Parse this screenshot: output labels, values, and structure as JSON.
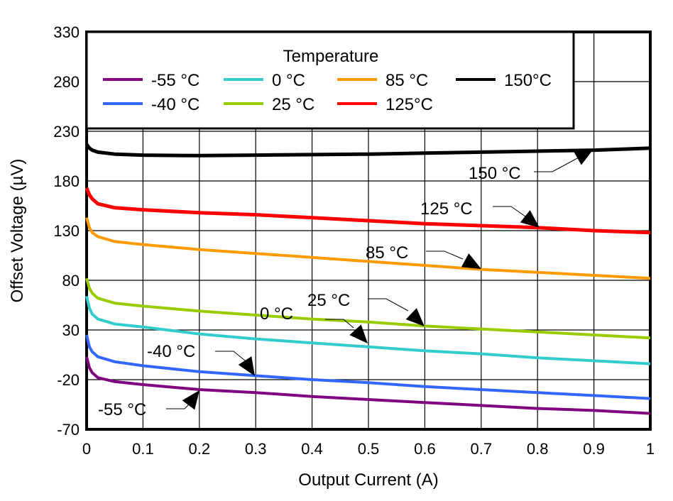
{
  "chart_data": {
    "type": "line",
    "title": "",
    "xlabel": "Output Current (A)",
    "ylabel": "Offset Voltage (µV)",
    "xlim": [
      0,
      1
    ],
    "ylim": [
      -70,
      330
    ],
    "xticks": [
      "0",
      "0.1",
      "0.2",
      "0.3",
      "0.4",
      "0.5",
      "0.6",
      "0.7",
      "0.8",
      "0.9",
      "1"
    ],
    "yticks": [
      "-70",
      "-20",
      "30",
      "80",
      "130",
      "180",
      "230",
      "280",
      "330"
    ],
    "grid": true,
    "legend": {
      "title": "Temperature",
      "placement": "top-left"
    },
    "x": [
      0,
      0.005,
      0.01,
      0.02,
      0.05,
      0.1,
      0.2,
      0.3,
      0.4,
      0.5,
      0.6,
      0.7,
      0.8,
      0.9,
      1.0
    ],
    "series": [
      {
        "name": "-55 °C",
        "color": "#800080",
        "values": [
          3,
          -8,
          -13,
          -18,
          -22,
          -25,
          -30,
          -33,
          -37,
          -40,
          -43,
          -46,
          -49,
          -51,
          -54
        ]
      },
      {
        "name": "-40 °C",
        "color": "#3366ff",
        "values": [
          25,
          13,
          8,
          3,
          -2,
          -6,
          -12,
          -16,
          -20,
          -23,
          -27,
          -30,
          -33,
          -36,
          -39
        ]
      },
      {
        "name": "0 °C",
        "color": "#33cccc",
        "values": [
          64,
          52,
          46,
          41,
          36,
          33,
          26,
          21,
          17,
          13,
          9,
          6,
          2,
          -1,
          -4
        ]
      },
      {
        "name": "25 °C",
        "color": "#99cc00",
        "values": [
          82,
          72,
          67,
          62,
          57,
          54,
          49,
          45,
          41,
          38,
          34,
          31,
          28,
          25,
          22
        ]
      },
      {
        "name": "85 °C",
        "color": "#ff9900",
        "values": [
          143,
          133,
          128,
          124,
          119,
          116,
          111,
          107,
          103,
          99,
          95,
          91,
          88,
          85,
          82
        ]
      },
      {
        "name": "125°C",
        "color": "#ff0000",
        "values": [
          173,
          166,
          162,
          157,
          153,
          151,
          148,
          146,
          143,
          140,
          137,
          135,
          133,
          130,
          128
        ]
      },
      {
        "name": "150°C",
        "color": "#000000",
        "values": [
          217,
          213,
          211,
          209,
          207,
          206,
          205.5,
          206,
          206.5,
          207,
          208,
          209,
          210,
          211,
          213
        ]
      }
    ],
    "annotations": [
      "150 °C",
      "125 °C",
      "85 °C",
      "25 °C",
      "0 °C",
      "-40 °C",
      "-55 °C"
    ]
  }
}
